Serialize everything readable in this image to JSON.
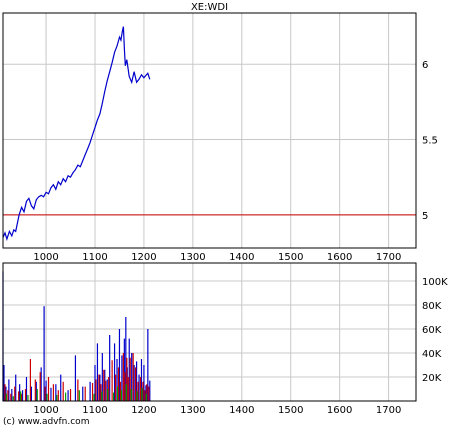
{
  "chart_data": [
    {
      "type": "line",
      "title": "XE:WDI",
      "xlim": [
        912,
        1756
      ],
      "ylim": [
        4.78,
        6.34
      ],
      "x_ticks": [
        1000,
        1100,
        1200,
        1300,
        1400,
        1500,
        1600,
        1700
      ],
      "y_ticks": [
        5,
        5.5,
        6
      ],
      "x_tick_labels": [
        "1000",
        "1100",
        "1200",
        "1300",
        "1400",
        "1500",
        "1600",
        "1700"
      ],
      "y_tick_labels": [
        "5",
        "5.5",
        "6"
      ],
      "grid": true,
      "reference_line": {
        "value": 5.0,
        "color": "#cc0000"
      },
      "series": [
        {
          "color": "#0000cc",
          "x": [
            912,
            916,
            920,
            925,
            930,
            934,
            938,
            945,
            950,
            955,
            960,
            965,
            970,
            975,
            980,
            985,
            990,
            995,
            1000,
            1005,
            1010,
            1015,
            1020,
            1025,
            1030,
            1035,
            1040,
            1045,
            1050,
            1055,
            1060,
            1065,
            1070,
            1075,
            1080,
            1085,
            1090,
            1095,
            1100,
            1105,
            1110,
            1115,
            1120,
            1125,
            1130,
            1135,
            1140,
            1145,
            1150,
            1153,
            1156,
            1158,
            1160,
            1162,
            1165,
            1170,
            1175,
            1180,
            1185,
            1190,
            1195,
            1200,
            1205,
            1208,
            1212
          ],
          "y": [
            4.85,
            4.88,
            4.84,
            4.89,
            4.86,
            4.9,
            4.89,
            5.0,
            5.05,
            5.02,
            5.09,
            5.11,
            5.06,
            5.04,
            5.1,
            5.12,
            5.13,
            5.12,
            5.15,
            5.14,
            5.18,
            5.2,
            5.17,
            5.22,
            5.2,
            5.24,
            5.22,
            5.26,
            5.25,
            5.28,
            5.3,
            5.33,
            5.32,
            5.36,
            5.4,
            5.44,
            5.48,
            5.53,
            5.58,
            5.63,
            5.67,
            5.74,
            5.82,
            5.89,
            5.95,
            6.01,
            6.08,
            6.12,
            6.18,
            6.16,
            6.22,
            6.25,
            6.1,
            5.99,
            6.03,
            5.92,
            5.88,
            5.95,
            5.88,
            5.9,
            5.93,
            5.91,
            5.93,
            5.94,
            5.9
          ]
        }
      ]
    },
    {
      "type": "bar",
      "title": "",
      "xlim": [
        912,
        1756
      ],
      "ylim": [
        0,
        115000
      ],
      "x_ticks": [
        1000,
        1100,
        1200,
        1300,
        1400,
        1500,
        1600,
        1700
      ],
      "y_ticks": [
        20000,
        40000,
        60000,
        80000,
        100000
      ],
      "x_tick_labels": [
        "1000",
        "1100",
        "1200",
        "1300",
        "1400",
        "1500",
        "1600",
        "1700"
      ],
      "y_tick_labels": [
        "20K",
        "40K",
        "60K",
        "80K",
        "100K"
      ],
      "grid": true,
      "series": [
        {
          "color": "#0000cc",
          "x": [
            912,
            914,
            918,
            924,
            930,
            938,
            946,
            952,
            960,
            970,
            980,
            990,
            996,
            1000,
            1010,
            1020,
            1030,
            1045,
            1060,
            1075,
            1090,
            1100,
            1105,
            1110,
            1115,
            1120,
            1125,
            1130,
            1140,
            1145,
            1150,
            1155,
            1160,
            1163,
            1166,
            1170,
            1175,
            1180,
            1185,
            1190,
            1195,
            1200,
            1204,
            1208,
            1212
          ],
          "values": [
            108000,
            30000,
            12000,
            18000,
            10000,
            22000,
            14000,
            9000,
            20000,
            12000,
            16000,
            28000,
            79000,
            17000,
            11000,
            14000,
            22000,
            9000,
            38000,
            12000,
            16000,
            30000,
            48000,
            22000,
            40000,
            26000,
            18000,
            55000,
            48000,
            35000,
            60000,
            38000,
            52000,
            70000,
            28000,
            52000,
            40000,
            30000,
            33000,
            22000,
            35000,
            30000,
            13000,
            60000,
            17000
          ]
        },
        {
          "color": "#cc0000",
          "x": [
            916,
            922,
            928,
            936,
            944,
            950,
            958,
            968,
            978,
            988,
            998,
            1005,
            1015,
            1025,
            1035,
            1050,
            1065,
            1080,
            1095,
            1102,
            1108,
            1112,
            1118,
            1122,
            1128,
            1135,
            1142,
            1148,
            1152,
            1158,
            1161,
            1165,
            1168,
            1172,
            1178,
            1183,
            1188,
            1193,
            1198,
            1202,
            1206,
            1210
          ],
          "values": [
            14000,
            9000,
            6000,
            12000,
            8000,
            6000,
            10000,
            35000,
            18000,
            24000,
            12000,
            20000,
            14000,
            9000,
            16000,
            10000,
            18000,
            12000,
            15000,
            18000,
            22000,
            14000,
            26000,
            17000,
            20000,
            34000,
            22000,
            28000,
            16000,
            40000,
            24000,
            36000,
            20000,
            36000,
            40000,
            28000,
            16000,
            20000,
            16000,
            9000,
            14000,
            12000
          ]
        },
        {
          "color": "#009900",
          "x": [
            919,
            933,
            948,
            963,
            982,
            1002,
            1022,
            1040,
            1068,
            1098,
            1114,
            1126,
            1138,
            1146,
            1154,
            1164,
            1174,
            1186,
            1196,
            1205
          ],
          "values": [
            6000,
            4000,
            8000,
            5000,
            10000,
            6000,
            5000,
            7000,
            9000,
            6000,
            8000,
            10000,
            7000,
            12000,
            9000,
            14000,
            10000,
            8000,
            11000,
            6000
          ]
        }
      ]
    }
  ],
  "footer": {
    "copyright": "(c) www.advfn.com"
  }
}
